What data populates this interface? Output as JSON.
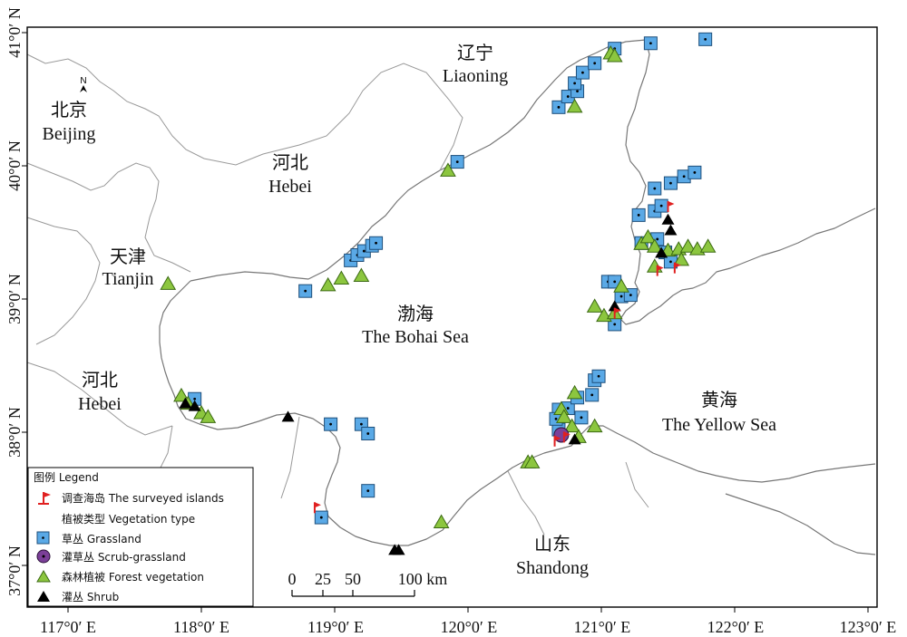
{
  "regions": {
    "liaoning": {
      "cn": "辽宁",
      "en": "Liaoning"
    },
    "beijing": {
      "cn": "北京",
      "en": "Beijing"
    },
    "hebei_north": {
      "cn": "河北",
      "en": "Hebei"
    },
    "tianjin": {
      "cn": "天津",
      "en": "Tianjin"
    },
    "hebei_south": {
      "cn": "河北",
      "en": "Hebei"
    },
    "bohai": {
      "cn": "渤海",
      "en": "The Bohai Sea"
    },
    "yellow_sea": {
      "cn": "黄海",
      "en": "The Yellow Sea"
    },
    "shandong": {
      "cn": "山东",
      "en": "Shandong"
    }
  },
  "axes": {
    "x_ticks": [
      "117°0′ E",
      "118°0′ E",
      "119°0′ E",
      "120°0′ E",
      "121°0′ E",
      "122°0′ E",
      "123°0′ E"
    ],
    "y_ticks": [
      "41°0′ N",
      "40°0′ N",
      "39°0′ N",
      "38°0′ N",
      "37°0′ N"
    ]
  },
  "legend": {
    "title": "图例 Legend",
    "surveyed": "调查海岛 The surveyed islands",
    "veg_title": "植被类型 Vegetation type",
    "grassland": "草丛 Grassland",
    "scrub_grassland": "灌草丛 Scrub-grassland",
    "forest": "森林植被 Forest vegetation",
    "shrub": "灌丛 Shrub"
  },
  "colors": {
    "grassland": "#5aa9e6",
    "forest": "#8cc63f",
    "scrub": "#7b3f98",
    "shrub": "#000000",
    "flag": "#e02020"
  },
  "scalebar": {
    "labels": [
      "0",
      "25",
      "50",
      "100 km"
    ]
  },
  "north_arrow": "N",
  "sites": {
    "grassland": [
      [
        119.92,
        40.03
      ],
      [
        118.78,
        39.06
      ],
      [
        119.12,
        39.29
      ],
      [
        119.17,
        39.33
      ],
      [
        119.22,
        39.36
      ],
      [
        119.28,
        39.4
      ],
      [
        119.31,
        39.42
      ],
      [
        120.68,
        40.44
      ],
      [
        120.75,
        40.52
      ],
      [
        120.82,
        40.56
      ],
      [
        120.8,
        40.62
      ],
      [
        120.86,
        40.7
      ],
      [
        120.95,
        40.77
      ],
      [
        121.1,
        40.88
      ],
      [
        121.37,
        40.92
      ],
      [
        121.78,
        40.95
      ],
      [
        121.4,
        39.83
      ],
      [
        121.52,
        39.87
      ],
      [
        121.62,
        39.92
      ],
      [
        121.7,
        39.95
      ],
      [
        121.28,
        39.63
      ],
      [
        121.4,
        39.66
      ],
      [
        121.45,
        39.7
      ],
      [
        121.3,
        39.42
      ],
      [
        121.42,
        39.45
      ],
      [
        121.48,
        39.35
      ],
      [
        121.52,
        39.28
      ],
      [
        121.05,
        39.13
      ],
      [
        121.1,
        39.13
      ],
      [
        121.15,
        39.02
      ],
      [
        121.22,
        39.03
      ],
      [
        121.1,
        38.81
      ],
      [
        120.68,
        38.17
      ],
      [
        120.75,
        38.18
      ],
      [
        120.82,
        38.26
      ],
      [
        120.93,
        38.28
      ],
      [
        120.95,
        38.39
      ],
      [
        120.98,
        38.42
      ],
      [
        120.68,
        38.02
      ],
      [
        120.66,
        38.1
      ],
      [
        120.85,
        38.11
      ],
      [
        119.2,
        38.06
      ],
      [
        119.25,
        37.99
      ],
      [
        118.97,
        38.06
      ],
      [
        119.25,
        37.56
      ],
      [
        117.95,
        38.25
      ],
      [
        118.9,
        37.36
      ]
    ],
    "forest": [
      [
        119.85,
        39.97
      ],
      [
        118.95,
        39.11
      ],
      [
        119.05,
        39.16
      ],
      [
        119.2,
        39.18
      ],
      [
        120.8,
        40.45
      ],
      [
        121.07,
        40.85
      ],
      [
        121.1,
        40.83
      ],
      [
        121.3,
        39.42
      ],
      [
        121.35,
        39.47
      ],
      [
        121.4,
        39.4
      ],
      [
        121.5,
        39.37
      ],
      [
        121.58,
        39.38
      ],
      [
        121.65,
        39.4
      ],
      [
        121.72,
        39.38
      ],
      [
        121.8,
        39.4
      ],
      [
        121.6,
        39.3
      ],
      [
        121.4,
        39.25
      ],
      [
        120.95,
        38.95
      ],
      [
        121.02,
        38.88
      ],
      [
        121.1,
        38.9
      ],
      [
        121.15,
        39.1
      ],
      [
        120.7,
        38.18
      ],
      [
        120.72,
        38.12
      ],
      [
        120.78,
        38.05
      ],
      [
        120.83,
        37.97
      ],
      [
        120.95,
        38.05
      ],
      [
        120.8,
        38.3
      ],
      [
        120.45,
        37.78
      ],
      [
        120.48,
        37.78
      ],
      [
        119.8,
        37.33
      ],
      [
        117.85,
        38.28
      ],
      [
        117.9,
        38.22
      ],
      [
        118.0,
        38.15
      ],
      [
        118.05,
        38.12
      ],
      [
        117.75,
        39.12
      ]
    ],
    "shrub": [
      [
        118.65,
        38.12
      ],
      [
        119.45,
        37.12
      ],
      [
        119.48,
        37.12
      ],
      [
        117.88,
        38.22
      ],
      [
        117.95,
        38.2
      ],
      [
        121.5,
        39.6
      ],
      [
        121.52,
        39.52
      ],
      [
        121.45,
        39.35
      ],
      [
        121.1,
        38.95
      ],
      [
        120.8,
        37.95
      ]
    ],
    "scrub": [
      [
        120.7,
        37.98
      ]
    ],
    "flags": [
      [
        121.5,
        39.68
      ],
      [
        121.42,
        39.2
      ],
      [
        121.55,
        39.22
      ],
      [
        121.1,
        38.88
      ],
      [
        120.65,
        37.92
      ],
      [
        120.72,
        37.95
      ],
      [
        118.85,
        37.42
      ]
    ]
  }
}
